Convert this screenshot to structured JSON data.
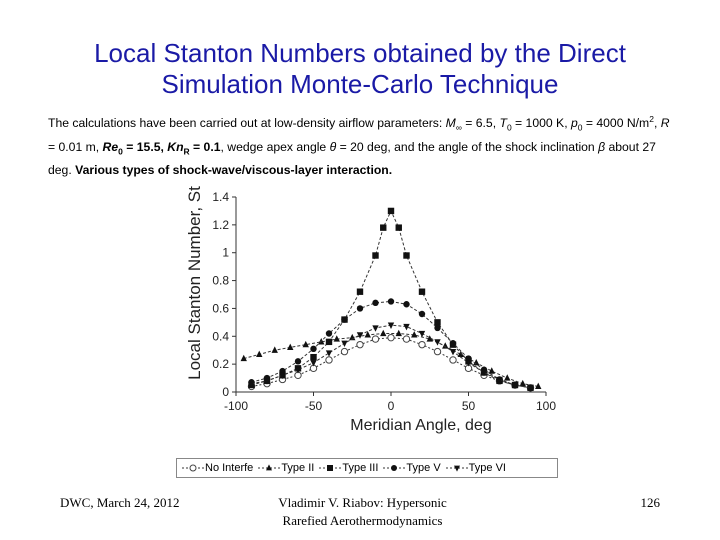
{
  "slide": {
    "title_line1": "Local Stanton Numbers obtained by the Direct",
    "title_line2": "Simulation Monte-Carlo Technique",
    "desc": {
      "t1": "The calculations have been carried out at low-density airflow parameters: ",
      "M": "M",
      "M_sub": "∞",
      "t2": " = 6.5, ",
      "T": "T",
      "T_sub": "0",
      "t3": " = 1000 K, ",
      "p": "p",
      "p_sub": "0",
      "t4": " = 4000 N/m",
      "sq": "2",
      "t5": ", ",
      "R": "R",
      "t6": " = 0.01 m, ",
      "Re": "Re",
      "Re_sub": "0",
      "t7": " = 15.5, ",
      "Kn": "Kn",
      "Kn_sub": "R",
      "t8": " = 0.1",
      "t9": ", wedge apex angle ",
      "theta": "θ",
      "t10": " = 20 deg, and the angle of the shock inclination ",
      "beta": "β",
      "t11": " about 27 deg. ",
      "t12": "Various types of shock-wave/viscous-layer interaction."
    },
    "footer": {
      "left": "DWC, March 24, 2012",
      "mid_line1": "Vladimir V. Riabov: Hypersonic",
      "mid_line2": "Rarefied Aerothermodynamics",
      "page": "126"
    }
  },
  "chart_data": {
    "type": "line",
    "title": "",
    "xlabel": "Meridian Angle, deg",
    "ylabel": "Local Stanton Number, St",
    "xlim": [
      -100,
      100
    ],
    "ylim": [
      0,
      1.4
    ],
    "xticks": [
      "-100",
      "-50",
      "0",
      "50",
      "100"
    ],
    "yticks": [
      "0",
      "0.2",
      "0.4",
      "0.6",
      "0.8",
      "1",
      "1.2",
      "1.4"
    ],
    "grid": false,
    "legend_position": "bottom",
    "series": [
      {
        "name": "No Interfe",
        "marker": "open-circle",
        "x": [
          -90,
          -80,
          -70,
          -60,
          -50,
          -40,
          -30,
          -20,
          -10,
          0,
          10,
          20,
          30,
          40,
          50,
          60,
          70,
          80,
          90
        ],
        "y": [
          0.04,
          0.06,
          0.09,
          0.12,
          0.17,
          0.23,
          0.29,
          0.34,
          0.38,
          0.39,
          0.38,
          0.34,
          0.29,
          0.23,
          0.17,
          0.12,
          0.08,
          0.05,
          0.03
        ]
      },
      {
        "name": "Type II",
        "marker": "triangle-up",
        "x": [
          -95,
          -85,
          -75,
          -65,
          -55,
          -45,
          -35,
          -25,
          -15,
          -5,
          5,
          15,
          25,
          35,
          45,
          55,
          65,
          75,
          85,
          95
        ],
        "y": [
          0.24,
          0.27,
          0.3,
          0.32,
          0.34,
          0.36,
          0.38,
          0.39,
          0.41,
          0.42,
          0.42,
          0.41,
          0.38,
          0.33,
          0.27,
          0.21,
          0.15,
          0.1,
          0.06,
          0.04
        ]
      },
      {
        "name": "Type III",
        "marker": "square",
        "x": [
          -90,
          -80,
          -70,
          -60,
          -50,
          -40,
          -30,
          -20,
          -10,
          -5,
          0,
          5,
          10,
          20,
          30,
          40,
          50,
          60,
          70,
          80,
          90
        ],
        "y": [
          0.05,
          0.08,
          0.12,
          0.17,
          0.25,
          0.36,
          0.52,
          0.72,
          0.98,
          1.18,
          1.3,
          1.18,
          0.98,
          0.72,
          0.5,
          0.34,
          0.22,
          0.14,
          0.08,
          0.05,
          0.03
        ]
      },
      {
        "name": "Type V",
        "marker": "filled-circle",
        "x": [
          -90,
          -80,
          -70,
          -60,
          -50,
          -40,
          -30,
          -20,
          -10,
          0,
          10,
          20,
          30,
          40,
          50,
          60,
          70,
          80,
          90
        ],
        "y": [
          0.07,
          0.1,
          0.15,
          0.22,
          0.31,
          0.42,
          0.52,
          0.6,
          0.64,
          0.65,
          0.63,
          0.56,
          0.46,
          0.35,
          0.24,
          0.16,
          0.09,
          0.05,
          0.03
        ]
      },
      {
        "name": "Type VI",
        "marker": "triangle-down",
        "x": [
          -90,
          -80,
          -70,
          -60,
          -50,
          -40,
          -30,
          -20,
          -10,
          0,
          10,
          20,
          30,
          40,
          50,
          60,
          70,
          80,
          90
        ],
        "y": [
          0.06,
          0.08,
          0.12,
          0.16,
          0.21,
          0.28,
          0.35,
          0.41,
          0.46,
          0.48,
          0.47,
          0.42,
          0.36,
          0.29,
          0.21,
          0.14,
          0.09,
          0.05,
          0.03
        ]
      }
    ]
  }
}
